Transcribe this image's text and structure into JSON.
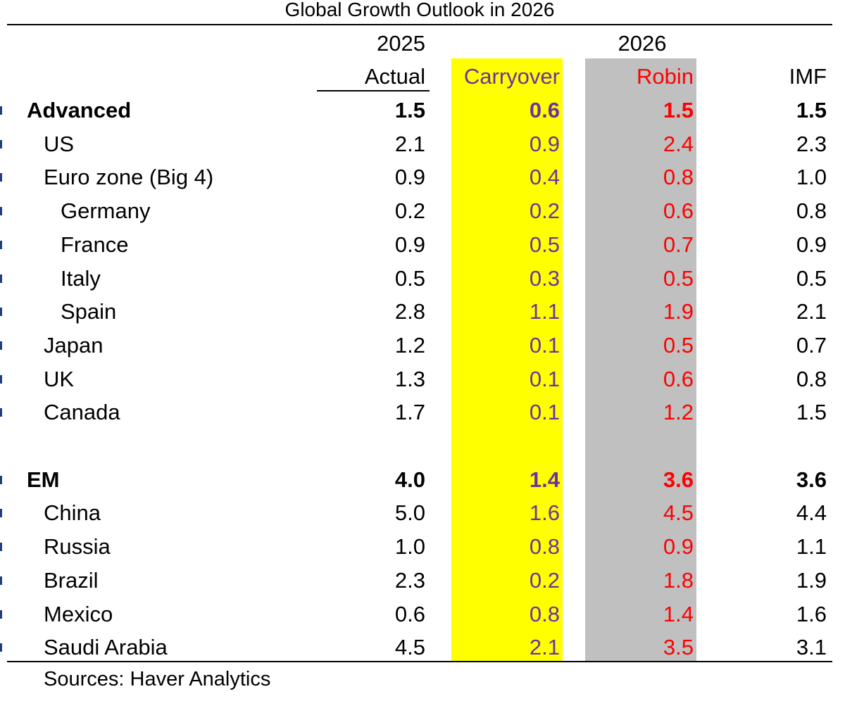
{
  "chart_data": {
    "type": "table",
    "title": "Global Growth Outlook in 2026",
    "header_groups": [
      "2025",
      "2026"
    ],
    "columns": [
      "Actual",
      "Carryover",
      "Robin",
      "IMF"
    ],
    "rows": [
      {
        "label": "Advanced",
        "level": 0,
        "bold": true,
        "values": [
          "1.5",
          "0.6",
          "1.5",
          "1.5"
        ]
      },
      {
        "label": "US",
        "level": 1,
        "bold": false,
        "values": [
          "2.1",
          "0.9",
          "2.4",
          "2.3"
        ]
      },
      {
        "label": "Euro zone (Big 4)",
        "level": 1,
        "bold": false,
        "values": [
          "0.9",
          "0.4",
          "0.8",
          "1.0"
        ]
      },
      {
        "label": "Germany",
        "level": 2,
        "bold": false,
        "values": [
          "0.2",
          "0.2",
          "0.6",
          "0.8"
        ]
      },
      {
        "label": "France",
        "level": 2,
        "bold": false,
        "values": [
          "0.9",
          "0.5",
          "0.7",
          "0.9"
        ]
      },
      {
        "label": "Italy",
        "level": 2,
        "bold": false,
        "values": [
          "0.5",
          "0.3",
          "0.5",
          "0.5"
        ]
      },
      {
        "label": "Spain",
        "level": 2,
        "bold": false,
        "values": [
          "2.8",
          "1.1",
          "1.9",
          "2.1"
        ]
      },
      {
        "label": "Japan",
        "level": 1,
        "bold": false,
        "values": [
          "1.2",
          "0.1",
          "0.5",
          "0.7"
        ]
      },
      {
        "label": "UK",
        "level": 1,
        "bold": false,
        "values": [
          "1.3",
          "0.1",
          "0.6",
          "0.8"
        ]
      },
      {
        "label": "Canada",
        "level": 1,
        "bold": false,
        "values": [
          "1.7",
          "0.1",
          "1.2",
          "1.5"
        ]
      },
      {
        "label": "EM",
        "level": 0,
        "bold": true,
        "values": [
          "4.0",
          "1.4",
          "3.6",
          "3.6"
        ]
      },
      {
        "label": "China",
        "level": 1,
        "bold": false,
        "values": [
          "5.0",
          "1.6",
          "4.5",
          "4.4"
        ]
      },
      {
        "label": "Russia",
        "level": 1,
        "bold": false,
        "values": [
          "1.0",
          "0.8",
          "0.9",
          "1.1"
        ]
      },
      {
        "label": "Brazil",
        "level": 1,
        "bold": false,
        "values": [
          "2.3",
          "0.2",
          "1.8",
          "1.9"
        ]
      },
      {
        "label": "Mexico",
        "level": 1,
        "bold": false,
        "values": [
          "0.6",
          "0.8",
          "1.4",
          "1.6"
        ]
      },
      {
        "label": "Saudi Arabia",
        "level": 1,
        "bold": false,
        "values": [
          "4.5",
          "2.1",
          "3.5",
          "3.1"
        ]
      }
    ],
    "source": "Sources: Haver Analytics",
    "colors": {
      "carryover_fill": "#ffff00",
      "carryover_text": "#7030a0",
      "robin_fill": "#c0c0c0",
      "robin_text": "#ff0000",
      "default_text": "#000000"
    }
  }
}
